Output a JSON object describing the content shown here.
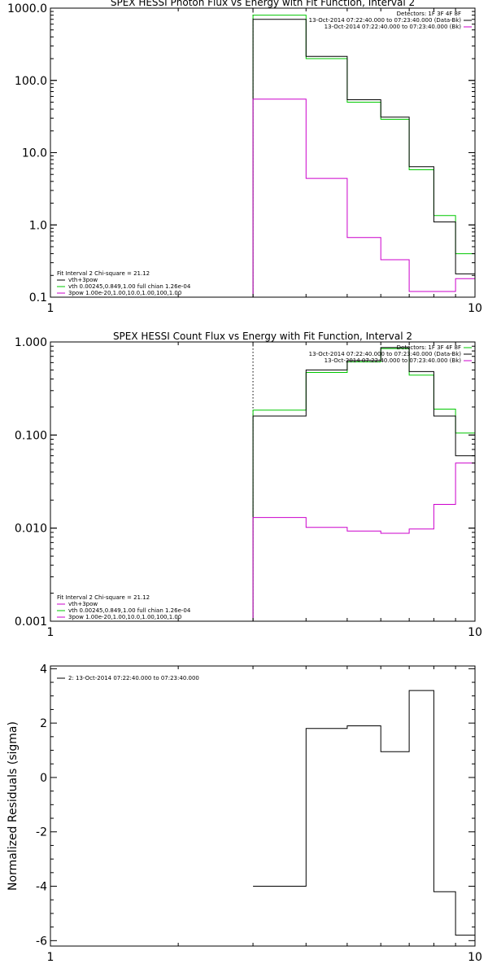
{
  "colors": {
    "data": "#000000",
    "model": "#00c800",
    "background": "#cc00cc",
    "axes": "#000000"
  },
  "chart_data": [
    {
      "type": "line",
      "title": "SPEX HESSI Photon Flux vs Energy with Fit Function, Interval 2",
      "xlabel": "",
      "ylabel": "",
      "xscale": "log",
      "yscale": "log",
      "xlim": [
        1,
        10
      ],
      "ylim": [
        0.1,
        1000
      ],
      "grid": false,
      "legend_position": "bottom-left",
      "header_position": "top-right",
      "xticks": [
        {
          "v": 1,
          "l": "1"
        },
        {
          "v": 10,
          "l": "10"
        }
      ],
      "yticks": [
        {
          "v": 0.1,
          "l": "0.1"
        },
        {
          "v": 1,
          "l": "1.0"
        },
        {
          "v": 10,
          "l": "10.0"
        },
        {
          "v": 100,
          "l": "100.0"
        },
        {
          "v": 1000,
          "l": "1000.0"
        }
      ],
      "bin_edges": [
        3,
        4,
        5,
        6,
        7,
        8,
        9,
        10
      ],
      "vline": 3,
      "series": [
        {
          "color": "#00c800",
          "values": [
            800,
            200,
            50,
            29,
            5.8,
            1.35,
            0.4
          ]
        },
        {
          "color": "#000000",
          "values": [
            700,
            215,
            54,
            31,
            6.4,
            1.1,
            0.21
          ]
        },
        {
          "color": "#cc00cc",
          "values": [
            55,
            4.4,
            0.67,
            0.33,
            0.12,
            0.12,
            0.18
          ]
        }
      ],
      "header": [
        {
          "text": "Detectors: 1F 3F 4F 8F",
          "color": ""
        },
        {
          "text": "13-Oct-2014 07:22:40.000 to 07:23:40.000 (Data-Bk)",
          "color": "#000000"
        },
        {
          "text": "13-Oct-2014 07:22:40.000 to 07:23:40.000 (Bk)",
          "color": "#cc00cc"
        }
      ],
      "legend": [
        {
          "text": "Fit Interval 2   Chi-square = 21.12",
          "color": ""
        },
        {
          "text": "vth+3pow",
          "color": "#000000"
        },
        {
          "text": "vth 0.00245,0.849,1.00   full chian 1.26e-04",
          "color": "#00c800"
        },
        {
          "text": "3pow 1.00e-20,1.00,10.0,1.00,100,1.00",
          "color": "#cc00cc"
        }
      ]
    },
    {
      "type": "line",
      "title": "SPEX HESSI Count Flux vs Energy with Fit Function, Interval 2",
      "xlabel": "",
      "ylabel": "",
      "xscale": "log",
      "yscale": "log",
      "xlim": [
        1,
        10
      ],
      "ylim": [
        0.001,
        1
      ],
      "grid": false,
      "legend_position": "bottom-left",
      "header_position": "top-right",
      "xticks": [
        {
          "v": 1,
          "l": "1"
        },
        {
          "v": 10,
          "l": "10"
        }
      ],
      "yticks": [
        {
          "v": 0.001,
          "l": "0.001"
        },
        {
          "v": 0.01,
          "l": "0.010"
        },
        {
          "v": 0.1,
          "l": "0.100"
        },
        {
          "v": 1,
          "l": "1.000"
        }
      ],
      "bin_edges": [
        3,
        4,
        5,
        6,
        7,
        8,
        9,
        10
      ],
      "vline": 3,
      "series": [
        {
          "color": "#00c800",
          "values": [
            0.185,
            0.47,
            0.61,
            0.85,
            0.44,
            0.19,
            0.105
          ]
        },
        {
          "color": "#000000",
          "values": [
            0.16,
            0.5,
            0.63,
            0.87,
            0.48,
            0.16,
            0.06
          ]
        },
        {
          "color": "#cc00cc",
          "values": [
            0.013,
            0.0102,
            0.0093,
            0.0088,
            0.0098,
            0.018,
            0.05
          ]
        }
      ],
      "header": [
        {
          "text": "Detectors: 1F 3F 4F 8F",
          "color": "#00c800"
        },
        {
          "text": "13-Oct-2014 07:22:40.000 to 07:23:40.000 (Data-Bk)",
          "color": "#000000"
        },
        {
          "text": "13-Oct-2014 07:22:40.000 to 07:23:40.000 (Bk)",
          "color": "#cc00cc"
        }
      ],
      "legend": [
        {
          "text": "Fit Interval 2   Chi-square = 21.12",
          "color": ""
        },
        {
          "text": "vth+3pow",
          "color": "#cc00cc"
        },
        {
          "text": "vth 0.00245,0.849,1.00   full chian 1.26e-04",
          "color": "#00c800"
        },
        {
          "text": "3pow 1.00e-20,1.00,10.0,1.00,100,1.00",
          "color": "#cc00cc"
        }
      ]
    },
    {
      "type": "line",
      "title": "",
      "xlabel": "",
      "ylabel": "Normalized Residuals (sigma)",
      "xscale": "log",
      "yscale": "linear",
      "xlim": [
        1,
        10
      ],
      "ylim": [
        -6.2,
        4.1
      ],
      "grid": false,
      "legend_position": "top-left",
      "xticks": [
        {
          "v": 1,
          "l": "1"
        },
        {
          "v": 10,
          "l": "10"
        }
      ],
      "yticks": [
        {
          "v": -6,
          "l": "-6"
        },
        {
          "v": -4,
          "l": "-4"
        },
        {
          "v": -2,
          "l": "-2"
        },
        {
          "v": 0,
          "l": "0"
        },
        {
          "v": 2,
          "l": "2"
        },
        {
          "v": 4,
          "l": "4"
        }
      ],
      "bin_edges": [
        3,
        4,
        5,
        6,
        7,
        8,
        9,
        10
      ],
      "series": [
        {
          "color": "#000000",
          "values": [
            -4.0,
            1.8,
            1.9,
            0.95,
            3.2,
            -4.2,
            -5.8
          ]
        }
      ],
      "header": [],
      "legend": [
        {
          "text": "2: 13-Oct-2014 07:22:40.000 to 07:23:40.000",
          "color": "#000000"
        }
      ]
    }
  ]
}
